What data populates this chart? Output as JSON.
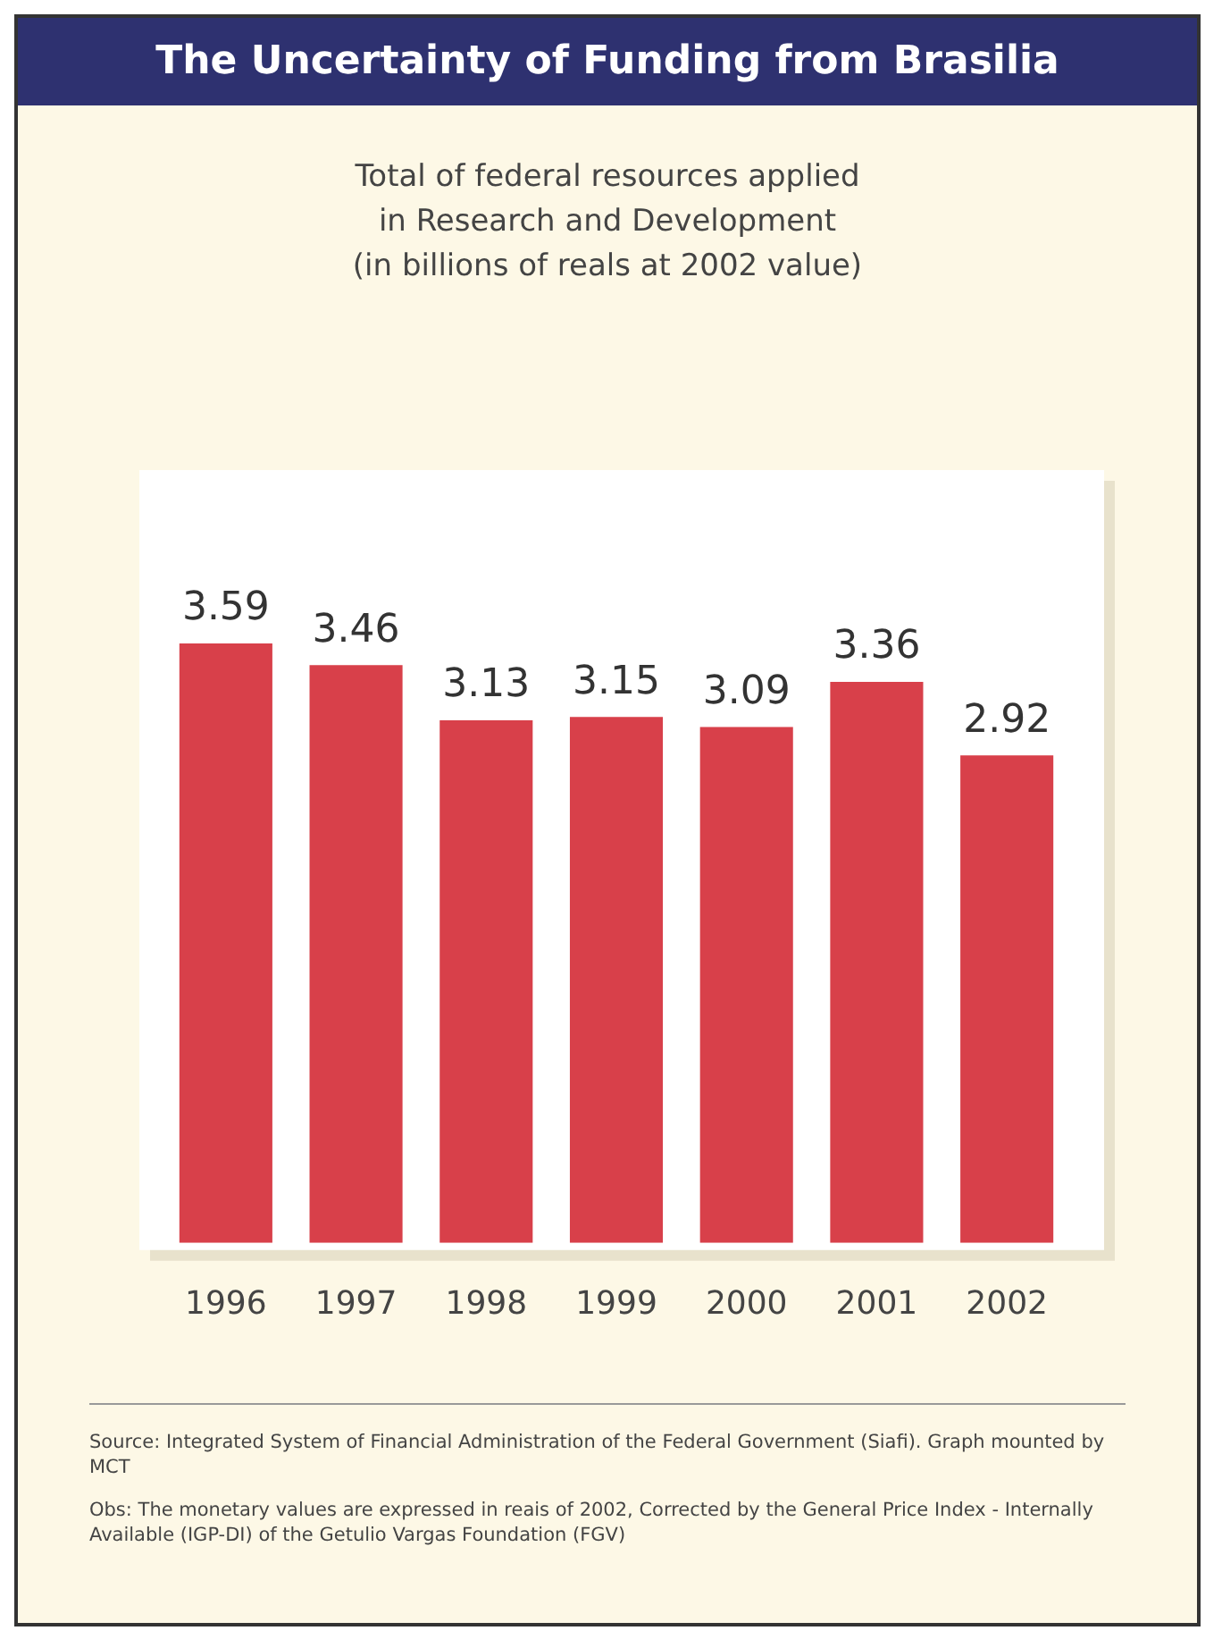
{
  "chart_data": {
    "type": "bar",
    "title": "The Uncertainty of Funding from Brasilia",
    "subtitle": "Total of federal resources applied\nin Research and Development\n(in billions of reals at 2002 value)",
    "categories": [
      "1996",
      "1997",
      "1998",
      "1999",
      "2000",
      "2001",
      "2002"
    ],
    "values": [
      3.59,
      3.46,
      3.13,
      3.15,
      3.09,
      3.36,
      2.92
    ],
    "color": "#d8404a",
    "data_labels": true,
    "tick_labels": "x",
    "grid": false,
    "legend": false,
    "annotations": [
      "Source: Integrated System of Financial Administration of the Federal Government (Siafi). Graph mounted by MCT",
      "Obs: The monetary values are expressed in reais of 2002, Corrected by the General Price Index - Internally Available (IGP-DI) of the Getulio Vargas Foundation (FGV)"
    ]
  }
}
